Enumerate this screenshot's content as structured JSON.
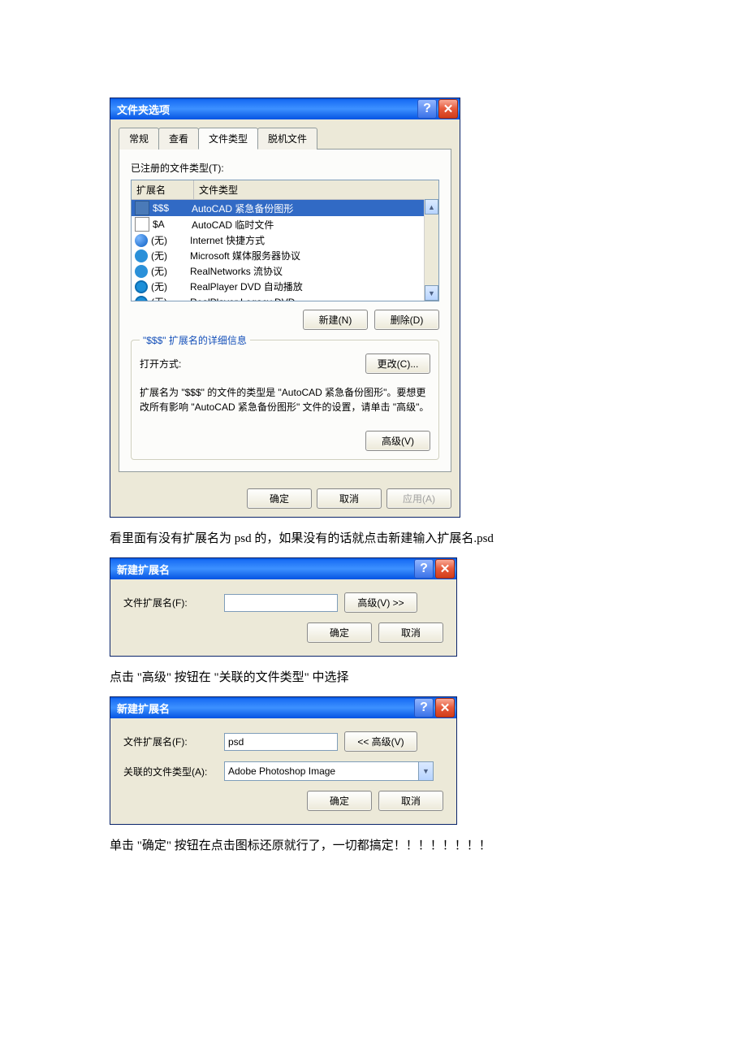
{
  "dialog1": {
    "title": "文件夹选项",
    "tabs": [
      "常规",
      "查看",
      "文件类型",
      "脱机文件"
    ],
    "active_tab": 2,
    "registered_label": "已注册的文件类型(T):",
    "col_ext": "扩展名",
    "col_type": "文件类型",
    "rows": [
      {
        "ext": "$$$",
        "type": "AutoCAD 紧急备份图形",
        "icon": "i-autocad",
        "selected": true
      },
      {
        "ext": "$A",
        "type": "AutoCAD 临时文件",
        "icon": "i-acs"
      },
      {
        "ext": "(无)",
        "type": "Internet 快捷方式",
        "icon": "i-ie"
      },
      {
        "ext": "(无)",
        "type": "Microsoft 媒体服务器协议",
        "icon": "i-q"
      },
      {
        "ext": "(无)",
        "type": "RealNetworks 流协议",
        "icon": "i-q"
      },
      {
        "ext": "(无)",
        "type": "RealPlayer DVD 自动播放",
        "icon": "i-rp"
      },
      {
        "ext": "(无)",
        "type": "RealPlayer Legacy DVD",
        "icon": "i-rp"
      }
    ],
    "new_btn": "新建(N)",
    "delete_btn": "删除(D)",
    "group_legend": "\"$$$\" 扩展名的详细信息",
    "open_with_label": "打开方式:",
    "change_btn": "更改(C)...",
    "desc": "扩展名为 \"$$$\" 的文件的类型是 \"AutoCAD 紧急备份图形\"。要想更改所有影响 \"AutoCAD 紧急备份图形\" 文件的设置，请单击 \"高级\"。",
    "advanced_btn": "高级(V)",
    "ok_btn": "确定",
    "cancel_btn": "取消",
    "apply_btn": "应用(A)"
  },
  "text1": "看里面有没有扩展名为 psd 的，如果没有的话就点击新建输入扩展名.psd",
  "dialog2": {
    "title": "新建扩展名",
    "ext_label": "文件扩展名(F):",
    "ext_value": "",
    "adv_btn": "高级(V) >>",
    "ok_btn": "确定",
    "cancel_btn": "取消"
  },
  "text2": "点击 \"高级\" 按钮在 \"关联的文件类型\" 中选择",
  "dialog3": {
    "title": "新建扩展名",
    "ext_label": "文件扩展名(F):",
    "ext_value": "psd",
    "assoc_label": "关联的文件类型(A):",
    "assoc_value": "Adobe Photoshop Image",
    "adv_btn": "<< 高级(V)",
    "ok_btn": "确定",
    "cancel_btn": "取消"
  },
  "text3": "单击 \"确定\" 按钮在点击图标还原就行了，一切都搞定！！！！！！！！"
}
